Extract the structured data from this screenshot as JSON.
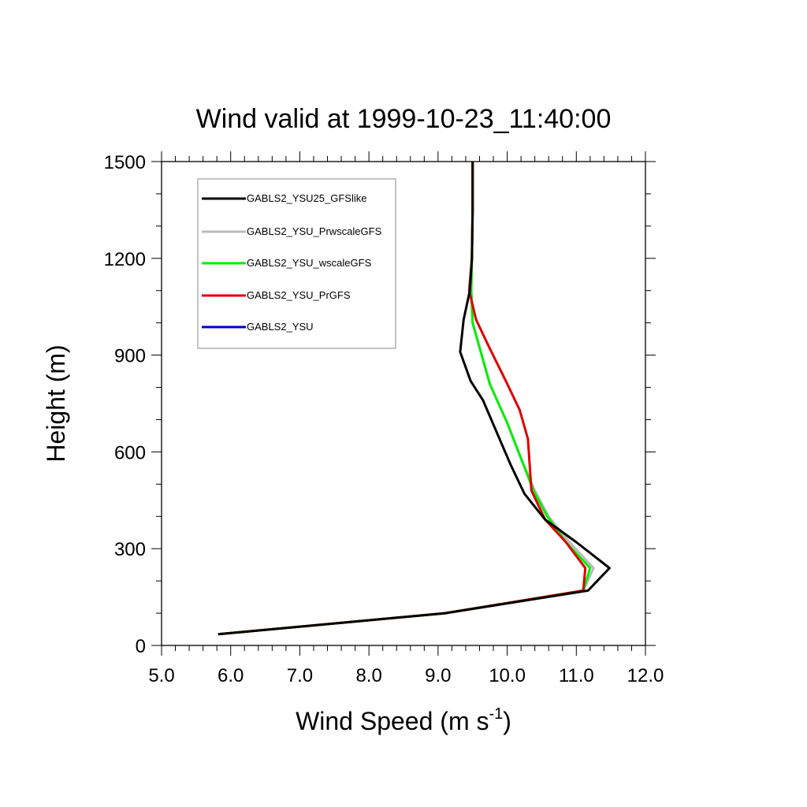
{
  "chart_data": {
    "type": "line",
    "title": "Wind valid at 1999-10-23_11:40:00",
    "xlabel": "Wind Speed (m s",
    "xlabel_sup": "-1",
    "xlabel_end": ")",
    "ylabel": "Height (m)",
    "xlim": [
      5.0,
      12.0
    ],
    "ylim": [
      0,
      1500
    ],
    "x_ticks": [
      "5.0",
      "6.0",
      "7.0",
      "8.0",
      "9.0",
      "10.0",
      "11.0",
      "12.0"
    ],
    "y_ticks": [
      "0",
      "300",
      "600",
      "900",
      "1200",
      "1500"
    ],
    "grid": false,
    "legend_position": "top-left",
    "series": [
      {
        "name": "GABLS2_YSU25_GFSlike",
        "color": "#000000",
        "points": [
          [
            5.82,
            35
          ],
          [
            9.1,
            100
          ],
          [
            11.17,
            170
          ],
          [
            11.48,
            240
          ],
          [
            11.0,
            320
          ],
          [
            10.55,
            390
          ],
          [
            10.25,
            470
          ],
          [
            10.05,
            560
          ],
          [
            9.85,
            660
          ],
          [
            9.65,
            760
          ],
          [
            9.47,
            820
          ],
          [
            9.32,
            910
          ],
          [
            9.37,
            1010
          ],
          [
            9.46,
            1100
          ],
          [
            9.49,
            1200
          ],
          [
            9.5,
            1350
          ],
          [
            9.5,
            1500
          ]
        ]
      },
      {
        "name": "GABLS2_YSU_PrwscaleGFS",
        "color": "#bbbbbb",
        "points": [
          [
            5.82,
            35
          ],
          [
            9.1,
            100
          ],
          [
            11.1,
            170
          ],
          [
            11.25,
            240
          ],
          [
            10.9,
            320
          ],
          [
            10.6,
            400
          ],
          [
            10.4,
            480
          ],
          [
            10.2,
            580
          ],
          [
            10.0,
            690
          ],
          [
            9.75,
            810
          ],
          [
            9.5,
            1000
          ],
          [
            9.48,
            1100
          ],
          [
            9.49,
            1200
          ],
          [
            9.5,
            1350
          ],
          [
            9.5,
            1500
          ]
        ]
      },
      {
        "name": "GABLS2_YSU_wscaleGFS",
        "color": "#00ee00",
        "points": [
          [
            5.82,
            35
          ],
          [
            9.1,
            100
          ],
          [
            11.1,
            170
          ],
          [
            11.2,
            240
          ],
          [
            10.85,
            320
          ],
          [
            10.58,
            400
          ],
          [
            10.38,
            480
          ],
          [
            10.2,
            580
          ],
          [
            10.0,
            690
          ],
          [
            9.75,
            810
          ],
          [
            9.5,
            1000
          ],
          [
            9.48,
            1100
          ],
          [
            9.49,
            1200
          ],
          [
            9.5,
            1350
          ],
          [
            9.5,
            1500
          ]
        ]
      },
      {
        "name": "GABLS2_YSU_PrGFS",
        "color": "#dd0000",
        "points": [
          [
            5.82,
            35
          ],
          [
            9.1,
            100
          ],
          [
            11.1,
            170
          ],
          [
            11.13,
            240
          ],
          [
            10.85,
            320
          ],
          [
            10.55,
            390
          ],
          [
            10.35,
            480
          ],
          [
            10.3,
            640
          ],
          [
            10.18,
            730
          ],
          [
            9.98,
            820
          ],
          [
            9.75,
            920
          ],
          [
            9.55,
            1010
          ],
          [
            9.45,
            1100
          ],
          [
            9.49,
            1200
          ],
          [
            9.5,
            1350
          ],
          [
            9.5,
            1500
          ]
        ]
      },
      {
        "name": "GABLS2_YSU",
        "color": "#0000cc",
        "points": []
      }
    ]
  }
}
